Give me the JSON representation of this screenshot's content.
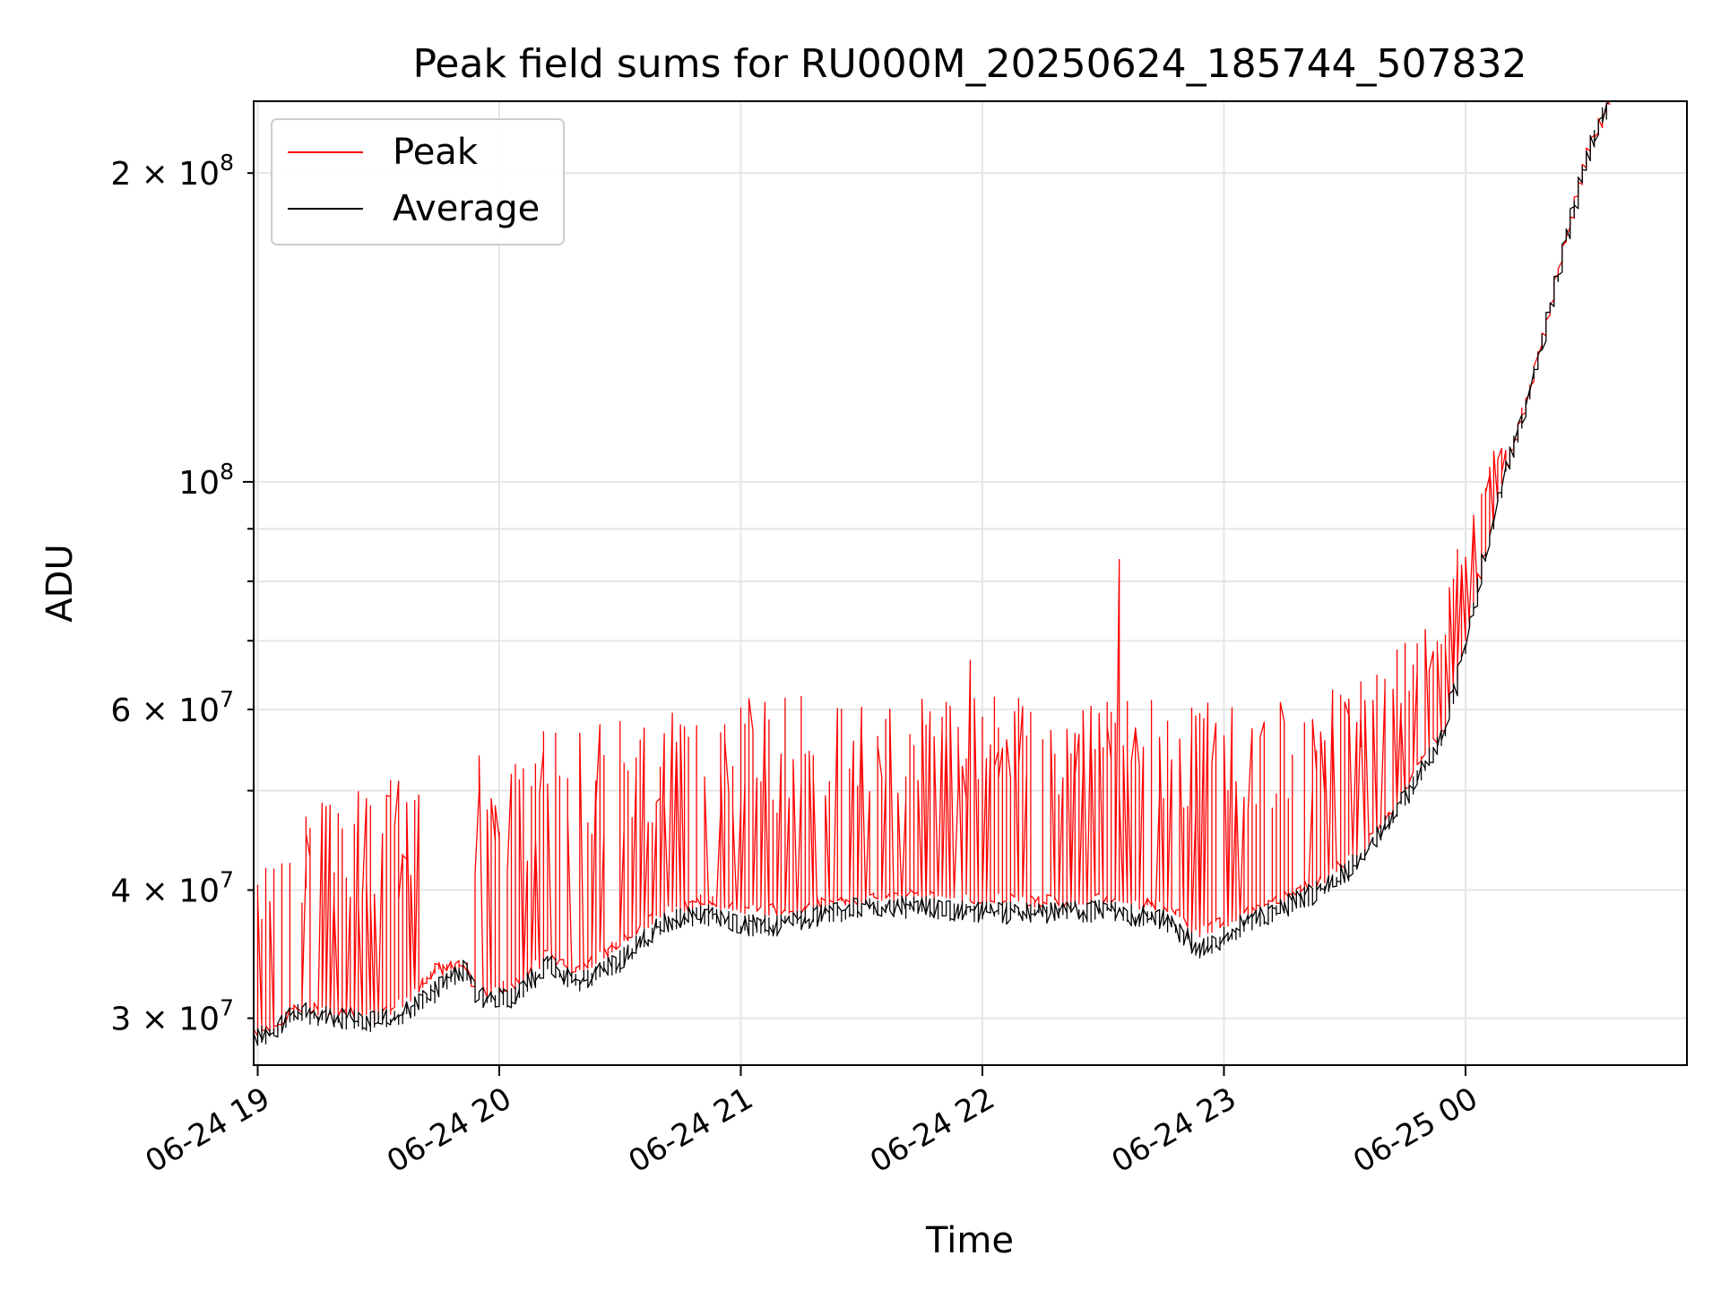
{
  "chart_data": {
    "type": "line",
    "title": "Peak field sums for RU000M_20250624_185744_507832",
    "xlabel": "Time",
    "ylabel": "ADU",
    "y_scale": "log",
    "ylim": [
      27000000,
      235000000
    ],
    "xlim": [
      "2025-06-24 18:59",
      "2025-06-25 00:55"
    ],
    "grid": true,
    "legend_position": "top-left",
    "x_ticks": [
      {
        "time": "2025-06-24 19:00",
        "label": "06-24 19"
      },
      {
        "time": "2025-06-24 20:00",
        "label": "06-24 20"
      },
      {
        "time": "2025-06-24 21:00",
        "label": "06-24 21"
      },
      {
        "time": "2025-06-24 22:00",
        "label": "06-24 22"
      },
      {
        "time": "2025-06-24 23:00",
        "label": "06-24 23"
      },
      {
        "time": "2025-06-25 00:00",
        "label": "06-25 00"
      }
    ],
    "y_ticks_major": [
      {
        "value": 100000000,
        "base": "10",
        "exp": "8"
      }
    ],
    "y_ticks_minor_labeled": [
      {
        "value": 30000000,
        "mant": "3",
        "base": "10",
        "exp": "7"
      },
      {
        "value": 40000000,
        "mant": "4",
        "base": "10",
        "exp": "7"
      },
      {
        "value": 60000000,
        "mant": "6",
        "base": "10",
        "exp": "7"
      },
      {
        "value": 200000000,
        "mant": "2",
        "base": "10",
        "exp": "8"
      }
    ],
    "y_ticks_minor_unlabeled": [
      50000000,
      70000000,
      80000000,
      90000000
    ],
    "series": [
      {
        "name": "Peak",
        "color": "#ff0000",
        "baseline_points": [
          [
            "2025-06-24 18:59",
            29000000
          ],
          [
            "2025-06-24 19:05",
            29500000
          ],
          [
            "2025-06-24 19:10",
            30800000
          ],
          [
            "2025-06-24 19:20",
            30500000
          ],
          [
            "2025-06-24 19:30",
            30200000
          ],
          [
            "2025-06-24 19:38",
            31500000
          ],
          [
            "2025-06-24 19:45",
            33500000
          ],
          [
            "2025-06-24 19:52",
            33800000
          ],
          [
            "2025-06-24 19:55",
            31800000
          ],
          [
            "2025-06-24 20:05",
            32500000
          ],
          [
            "2025-06-24 20:12",
            34500000
          ],
          [
            "2025-06-24 20:20",
            33500000
          ],
          [
            "2025-06-24 20:30",
            35500000
          ],
          [
            "2025-06-24 20:40",
            38000000
          ],
          [
            "2025-06-24 20:50",
            39000000
          ],
          [
            "2025-06-24 21:00",
            38500000
          ],
          [
            "2025-06-24 21:10",
            38200000
          ],
          [
            "2025-06-24 21:20",
            38800000
          ],
          [
            "2025-06-24 21:30",
            39300000
          ],
          [
            "2025-06-24 21:45",
            39500000
          ],
          [
            "2025-06-24 22:00",
            39300000
          ],
          [
            "2025-06-24 22:15",
            39000000
          ],
          [
            "2025-06-24 22:30",
            39200000
          ],
          [
            "2025-06-24 22:45",
            38700000
          ],
          [
            "2025-06-24 22:55",
            36500000
          ],
          [
            "2025-06-24 23:05",
            38000000
          ],
          [
            "2025-06-24 23:15",
            39500000
          ],
          [
            "2025-06-24 23:25",
            41000000
          ],
          [
            "2025-06-24 23:35",
            44000000
          ],
          [
            "2025-06-24 23:45",
            50000000
          ],
          [
            "2025-06-24 23:55",
            58000000
          ],
          [
            "2025-06-25 00:00",
            69000000
          ],
          [
            "2025-06-25 00:05",
            85000000
          ],
          [
            "2025-06-25 00:10",
            102000000
          ],
          [
            "2025-06-25 00:15",
            118000000
          ],
          [
            "2025-06-25 00:20",
            140000000
          ],
          [
            "2025-06-25 00:25",
            170000000
          ],
          [
            "2025-06-25 00:30",
            205000000
          ],
          [
            "2025-06-25 00:35",
            230000000
          ],
          [
            "2025-06-25 00:36",
            235000000
          ]
        ],
        "spike_envelope": [
          [
            "2025-06-24 18:59",
            46000000
          ],
          [
            "2025-06-24 19:30",
            52000000
          ],
          [
            "2025-06-24 19:45",
            51000000
          ],
          [
            "2025-06-24 20:00",
            56000000
          ],
          [
            "2025-06-24 20:30",
            59000000
          ],
          [
            "2025-06-24 21:00",
            62000000
          ],
          [
            "2025-06-24 22:00",
            62000000
          ],
          [
            "2025-06-24 23:00",
            61000000
          ],
          [
            "2025-06-24 23:30",
            63000000
          ],
          [
            "2025-06-24 23:50",
            72000000
          ],
          [
            "2025-06-25 00:04",
            100000000
          ],
          [
            "2025-06-25 00:10",
            112000000
          ]
        ],
        "notable_peaks": [
          [
            "2025-06-24 22:34",
            84000000
          ],
          [
            "2025-06-24 21:57",
            67000000
          ]
        ]
      },
      {
        "name": "Average",
        "color": "#000000",
        "points": [
          [
            "2025-06-24 18:59",
            28500000
          ],
          [
            "2025-06-24 19:05",
            29200000
          ],
          [
            "2025-06-24 19:10",
            30500000
          ],
          [
            "2025-06-24 19:20",
            30000000
          ],
          [
            "2025-06-24 19:30",
            29800000
          ],
          [
            "2025-06-24 19:38",
            30500000
          ],
          [
            "2025-06-24 19:45",
            32000000
          ],
          [
            "2025-06-24 19:52",
            33500000
          ],
          [
            "2025-06-24 19:55",
            31500000
          ],
          [
            "2025-06-24 20:05",
            31500000
          ],
          [
            "2025-06-24 20:12",
            34000000
          ],
          [
            "2025-06-24 20:20",
            32500000
          ],
          [
            "2025-06-24 20:30",
            34000000
          ],
          [
            "2025-06-24 20:40",
            37000000
          ],
          [
            "2025-06-24 20:50",
            38000000
          ],
          [
            "2025-06-24 21:00",
            37000000
          ],
          [
            "2025-06-24 21:10",
            37000000
          ],
          [
            "2025-06-24 21:20",
            37800000
          ],
          [
            "2025-06-24 21:30",
            38500000
          ],
          [
            "2025-06-24 21:45",
            38500000
          ],
          [
            "2025-06-24 22:00",
            38000000
          ],
          [
            "2025-06-24 22:15",
            38000000
          ],
          [
            "2025-06-24 22:30",
            38200000
          ],
          [
            "2025-06-24 22:45",
            37500000
          ],
          [
            "2025-06-24 22:55",
            35000000
          ],
          [
            "2025-06-24 23:05",
            37000000
          ],
          [
            "2025-06-24 23:15",
            38500000
          ],
          [
            "2025-06-24 23:25",
            40000000
          ],
          [
            "2025-06-24 23:35",
            43000000
          ],
          [
            "2025-06-24 23:45",
            49000000
          ],
          [
            "2025-06-24 23:55",
            57000000
          ],
          [
            "2025-06-25 00:00",
            68000000
          ],
          [
            "2025-06-25 00:05",
            84000000
          ],
          [
            "2025-06-25 00:10",
            101000000
          ],
          [
            "2025-06-25 00:15",
            117000000
          ],
          [
            "2025-06-25 00:20",
            139000000
          ],
          [
            "2025-06-25 00:25",
            169000000
          ],
          [
            "2025-06-25 00:30",
            204000000
          ],
          [
            "2025-06-25 00:35",
            230000000
          ],
          [
            "2025-06-25 00:36",
            235000000
          ]
        ]
      }
    ]
  }
}
